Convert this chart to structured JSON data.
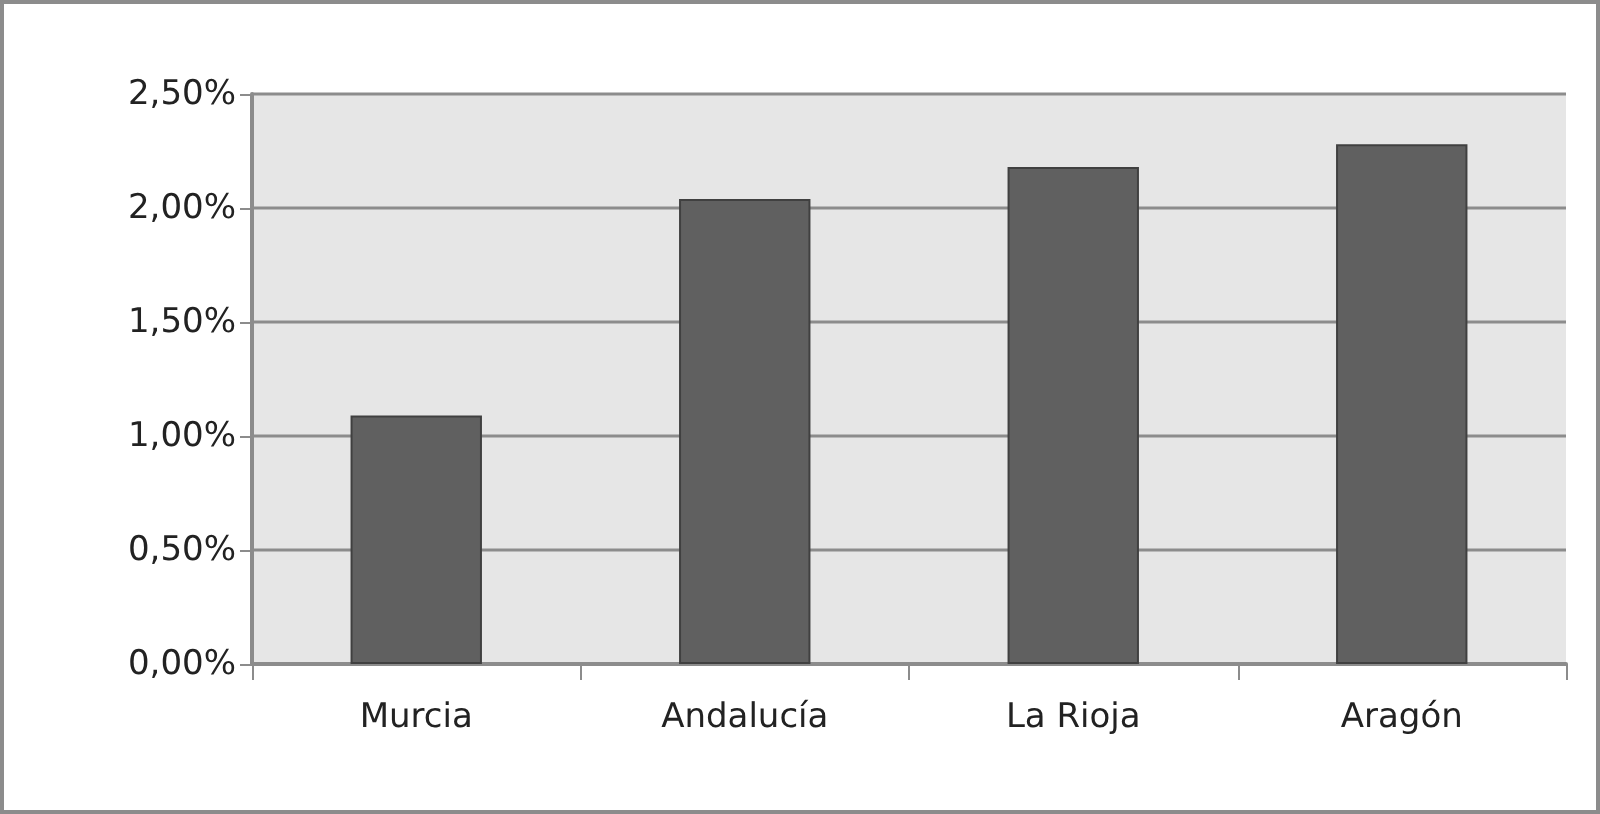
{
  "chart_data": {
    "type": "bar",
    "categories": [
      "Murcia",
      "Andalucía",
      "La Rioja",
      "Aragón"
    ],
    "values": [
      1.09,
      2.04,
      2.18,
      2.28
    ],
    "color": "#606060",
    "ylim": [
      0,
      2.5
    ],
    "yticks": [
      {
        "value": 0,
        "label": "0,00%"
      },
      {
        "value": 0.5,
        "label": "0,50%"
      },
      {
        "value": 1,
        "label": "1,00%"
      },
      {
        "value": 1.5,
        "label": "1,50%"
      },
      {
        "value": 2,
        "label": "2,00%"
      },
      {
        "value": 2.5,
        "label": "2,50%"
      }
    ],
    "grid": "y"
  }
}
